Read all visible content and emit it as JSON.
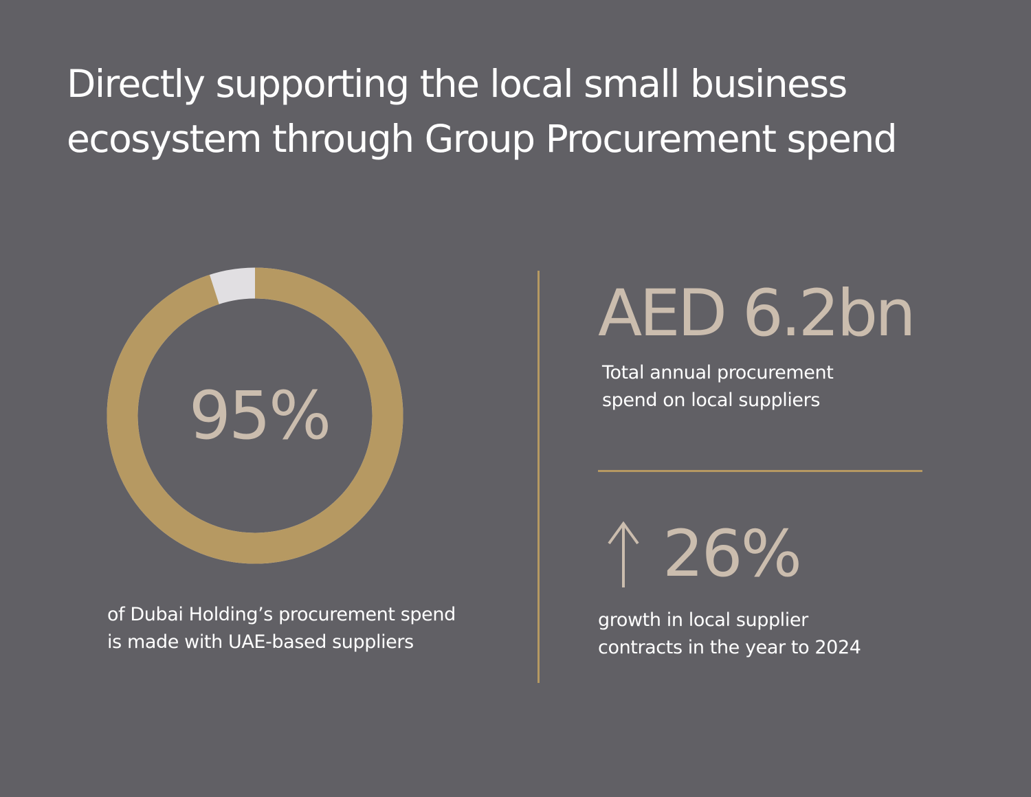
{
  "title": {
    "line1": "Directly supporting the local small business",
    "line2": "ecosystem through Group Procurement spend"
  },
  "colors": {
    "background": "#616065",
    "accent_gold": "#b69962",
    "donut_remainder": "#e1dfe2",
    "stat_text": "#cbbdae",
    "body_text": "#ffffff"
  },
  "local_supplier_share": {
    "value_text": "95%",
    "share": 0.95,
    "caption_line1": "of Dubai Holding’s procurement spend",
    "caption_line2": "is made with UAE-based suppliers"
  },
  "annual_spend": {
    "value_text": "AED 6.2bn",
    "caption_line1": "Total annual procurement",
    "caption_line2": "spend on local suppliers"
  },
  "contract_growth": {
    "icon": "arrow-up-icon",
    "value_text": "26%",
    "caption_line1": "growth in local supplier",
    "caption_line2": "contracts in the year to 2024"
  }
}
